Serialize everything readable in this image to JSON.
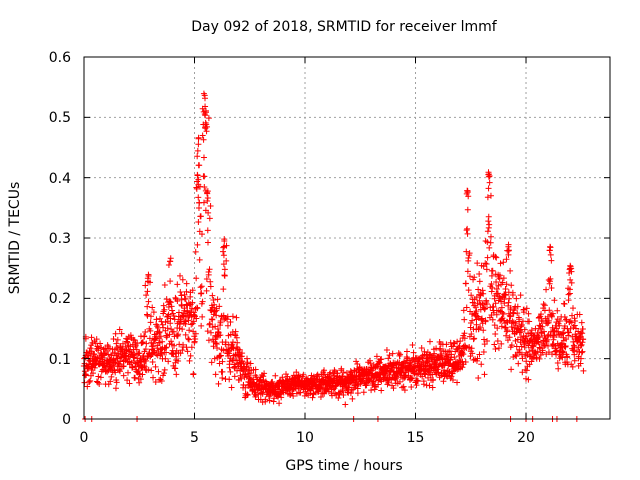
{
  "colors": {
    "series": "#ff0000",
    "grid": "#a0a0a0",
    "axis": "#000000"
  },
  "chart_data": {
    "type": "scatter",
    "title": "Day 092 of 2018, SRMTID for receiver lmmf",
    "xlabel": "GPS time / hours",
    "ylabel": "SRMTID / TECUs",
    "xlim": [
      0,
      23.8
    ],
    "ylim": [
      0,
      0.6
    ],
    "grid": true,
    "legend": "none",
    "xticks": [
      0,
      5,
      10,
      15,
      20
    ],
    "xtick_labels": [
      "0",
      "5",
      "10",
      "15",
      "20"
    ],
    "yticks": [
      0,
      0.1,
      0.2,
      0.3,
      0.4,
      0.5,
      0.6
    ],
    "ytick_labels": [
      "0",
      "0.1",
      "0.2",
      "0.3",
      "0.4",
      "0.5",
      "0.6"
    ],
    "series": [
      {
        "name": "SRMTID",
        "marker": "plus",
        "profile_hours": [
          0,
          0.5,
          1,
          1.5,
          2,
          2.5,
          3,
          3.5,
          4,
          4.5,
          5,
          5.5,
          6,
          6.5,
          7,
          7.5,
          8,
          8.5,
          9,
          9.5,
          10,
          10.5,
          11,
          11.5,
          12,
          12.5,
          13,
          13.5,
          14,
          14.5,
          15,
          15.5,
          16,
          16.5,
          17,
          17.5,
          18,
          18.5,
          19,
          19.5,
          20,
          20.5,
          21,
          21.5,
          22,
          22.6
        ],
        "profile_median": [
          0.09,
          0.1,
          0.09,
          0.1,
          0.11,
          0.09,
          0.12,
          0.13,
          0.14,
          0.16,
          0.15,
          0.18,
          0.14,
          0.12,
          0.1,
          0.06,
          0.055,
          0.05,
          0.05,
          0.06,
          0.055,
          0.055,
          0.06,
          0.06,
          0.06,
          0.07,
          0.075,
          0.08,
          0.08,
          0.08,
          0.085,
          0.09,
          0.09,
          0.09,
          0.1,
          0.15,
          0.17,
          0.2,
          0.18,
          0.15,
          0.12,
          0.13,
          0.15,
          0.13,
          0.13,
          0.13
        ],
        "profile_spread": [
          0.03,
          0.03,
          0.03,
          0.03,
          0.03,
          0.03,
          0.04,
          0.05,
          0.06,
          0.06,
          0.07,
          0.09,
          0.06,
          0.05,
          0.04,
          0.02,
          0.02,
          0.015,
          0.015,
          0.015,
          0.015,
          0.015,
          0.015,
          0.02,
          0.02,
          0.02,
          0.02,
          0.02,
          0.02,
          0.025,
          0.025,
          0.025,
          0.025,
          0.025,
          0.03,
          0.06,
          0.07,
          0.07,
          0.06,
          0.05,
          0.04,
          0.04,
          0.05,
          0.04,
          0.04,
          0.04
        ],
        "peaks": [
          {
            "x": 2.9,
            "y": 0.24
          },
          {
            "x": 3.9,
            "y": 0.27
          },
          {
            "x": 5.15,
            "y": 0.41
          },
          {
            "x": 5.2,
            "y": 0.47
          },
          {
            "x": 5.45,
            "y": 0.54
          },
          {
            "x": 5.5,
            "y": 0.52
          },
          {
            "x": 5.6,
            "y": 0.38
          },
          {
            "x": 6.35,
            "y": 0.3
          },
          {
            "x": 17.35,
            "y": 0.38
          },
          {
            "x": 18.3,
            "y": 0.41
          },
          {
            "x": 19.2,
            "y": 0.29
          },
          {
            "x": 21.1,
            "y": 0.29
          },
          {
            "x": 22.0,
            "y": 0.26
          }
        ],
        "zero_markers_hours": [
          0.05,
          0.35,
          2.4,
          12.2,
          13.3,
          19.3,
          20.0,
          20.3,
          21.2,
          21.4,
          22.3
        ]
      }
    ]
  }
}
